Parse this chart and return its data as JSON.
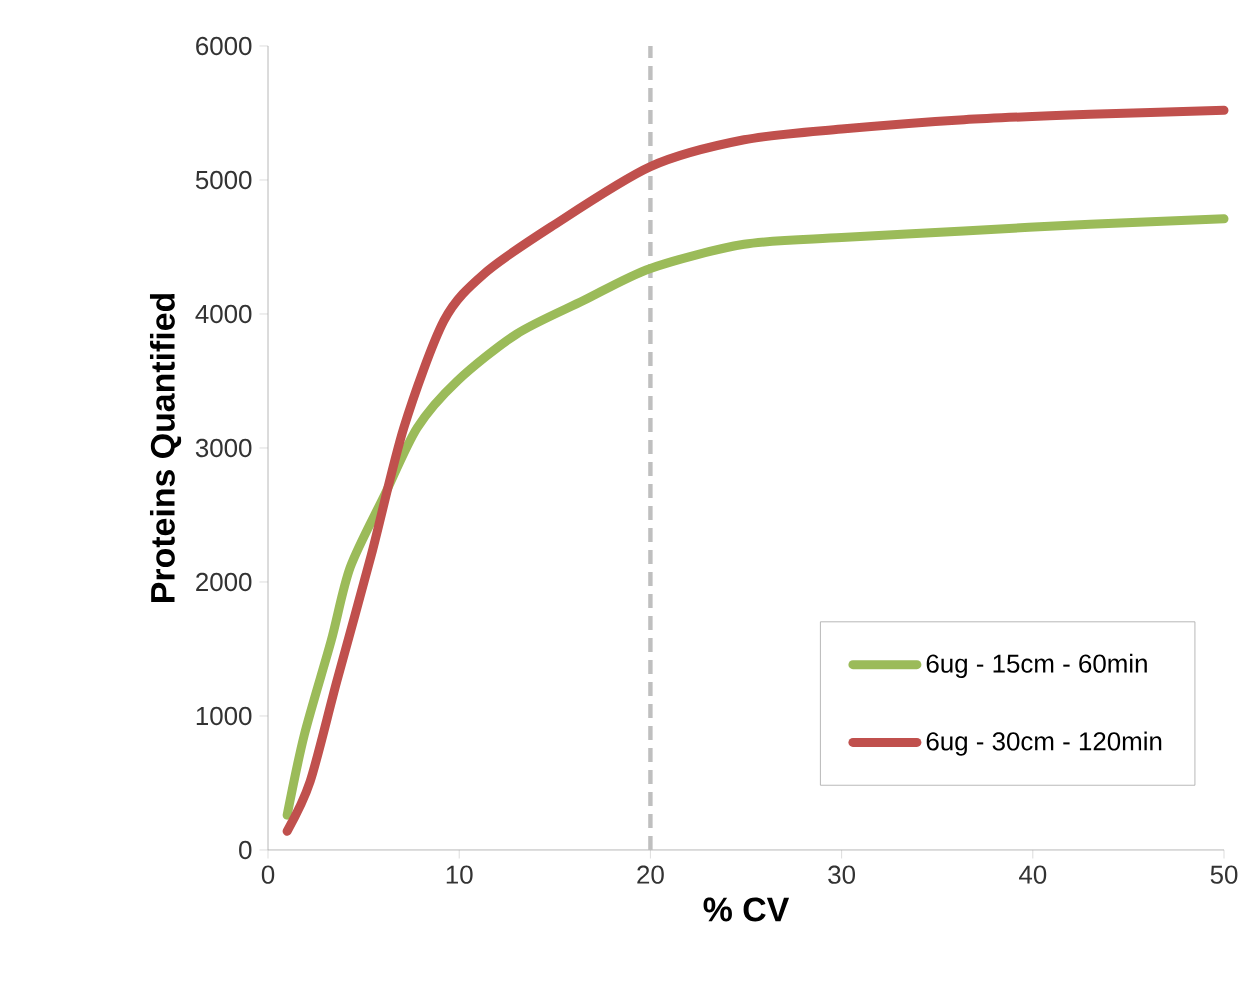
{
  "chart_data": {
    "type": "line",
    "xlabel": "% CV",
    "ylabel": "Proteins Quantified",
    "xlim": [
      0,
      50
    ],
    "xticks": [
      0,
      10,
      20,
      30,
      40,
      50
    ],
    "ylim": [
      0,
      6000
    ],
    "yticks": [
      0,
      1000,
      2000,
      3000,
      4000,
      5000,
      6000
    ],
    "grid": false,
    "legend": "bottom right",
    "marker": "none",
    "line_style": "solid",
    "ref_lines": [
      {
        "axis": "x",
        "value": 20,
        "color": "#bfbfbf",
        "line_style": "dashed"
      }
    ],
    "series": [
      {
        "name": "6ug - 15cm - 60min",
        "color": "#9bbb59",
        "x": [
          1,
          1.9,
          3.3,
          4.3,
          6.1,
          7.8,
          9.9,
          13,
          16.5,
          20,
          24.9,
          30,
          36.4,
          43,
          50
        ],
        "values": [
          260,
          860,
          1560,
          2110,
          2650,
          3150,
          3500,
          3850,
          4100,
          4340,
          4520,
          4570,
          4620,
          4670,
          4710
        ]
      },
      {
        "name": "6ug - 30cm - 120min",
        "color": "#c0504d",
        "x": [
          1,
          2.2,
          3.6,
          5.4,
          7.1,
          9.2,
          11.3,
          14.8,
          20,
          24.9,
          30,
          36.4,
          43,
          50
        ],
        "values": [
          140,
          510,
          1260,
          2200,
          3150,
          3950,
          4300,
          4650,
          5100,
          5300,
          5380,
          5450,
          5490,
          5520
        ]
      }
    ]
  }
}
